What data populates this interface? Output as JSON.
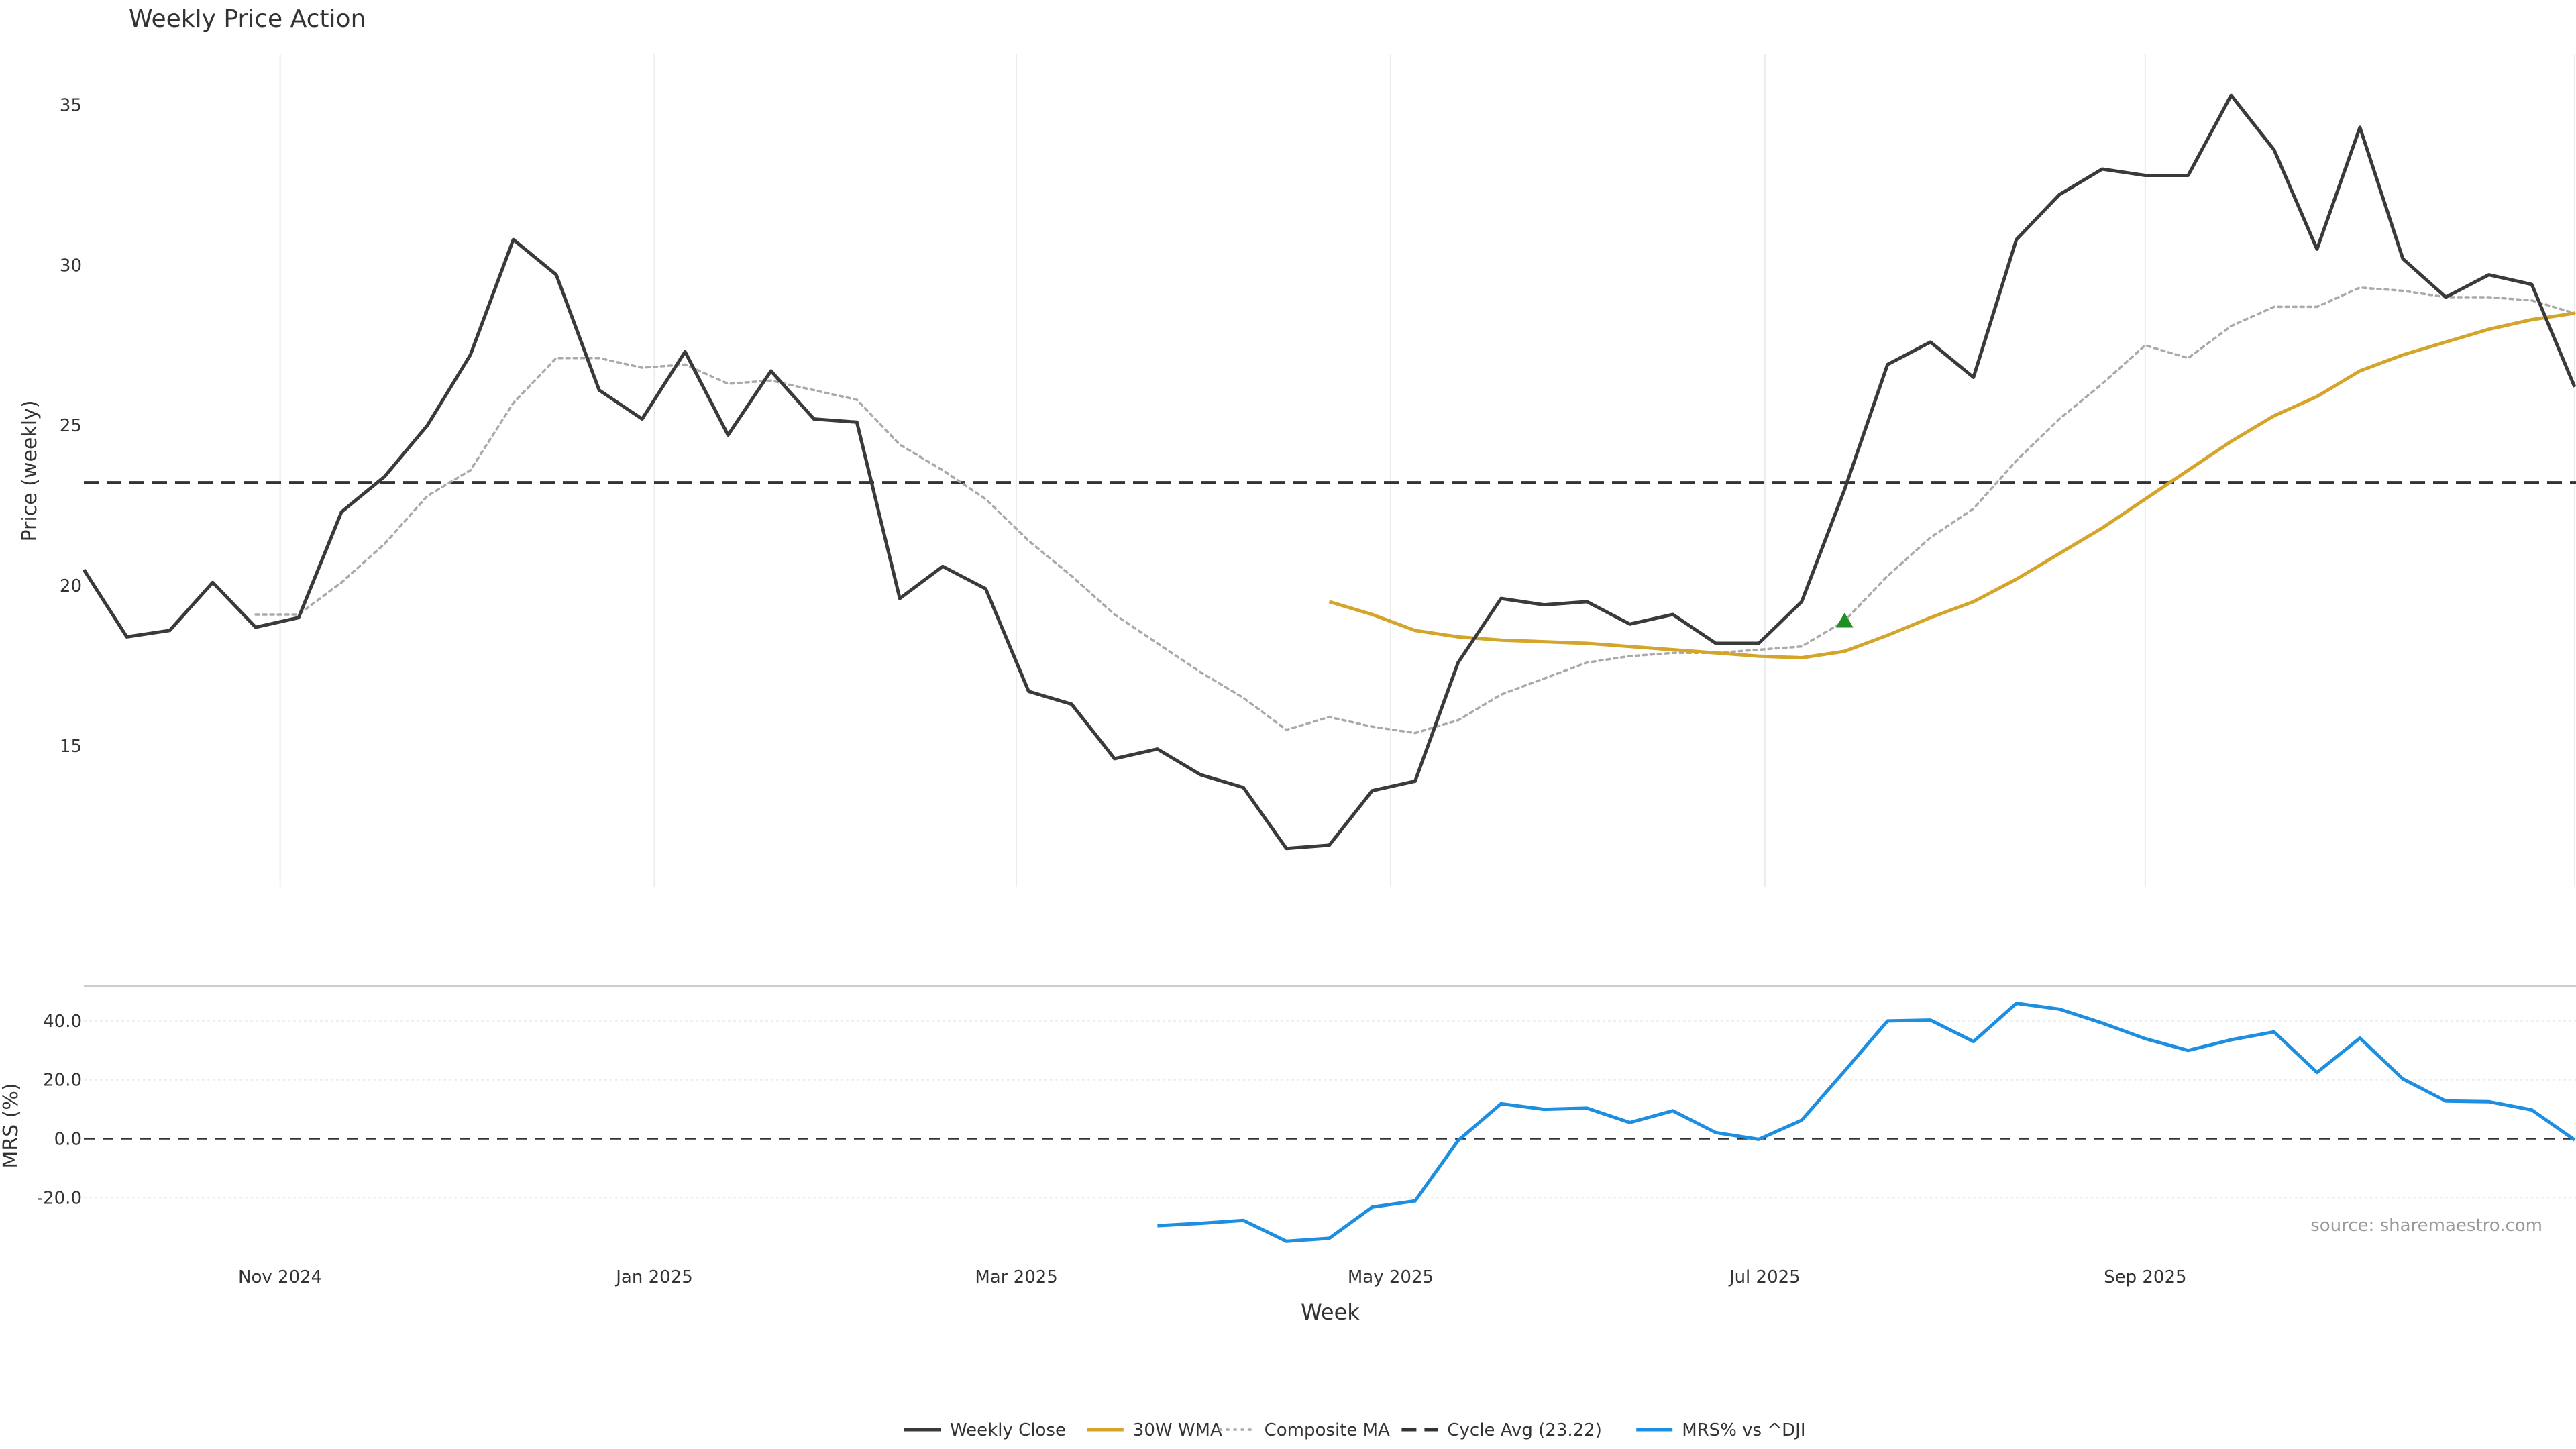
{
  "chart_data": {
    "type": "line",
    "title": "Weekly Price Action",
    "x_start": "2024-09-30",
    "x_step_days": 7,
    "x_tick_labels": [
      {
        "label": "Nov 2024",
        "date": "2024-11-01"
      },
      {
        "label": "Jan 2025",
        "date": "2025-01-01"
      },
      {
        "label": "Mar 2025",
        "date": "2025-03-01"
      },
      {
        "label": "May 2025",
        "date": "2025-05-01"
      },
      {
        "label": "Jul 2025",
        "date": "2025-07-01"
      },
      {
        "label": "Sep 2025",
        "date": "2025-09-01"
      }
    ],
    "xlabel": "Week",
    "price_panel": {
      "ylabel": "Price (weekly)",
      "ylim": [
        10.6,
        36.6
      ],
      "yticks": [
        15,
        20,
        25,
        30,
        35
      ],
      "series": [
        {
          "name": "Weekly Close",
          "color": "#3a3a3a",
          "style": "solid",
          "values": [
            20.5,
            18.4,
            18.6,
            20.1,
            18.7,
            19.0,
            22.3,
            23.4,
            25.0,
            27.2,
            30.8,
            29.7,
            26.1,
            25.2,
            27.3,
            24.7,
            26.7,
            25.2,
            25.1,
            19.6,
            20.6,
            19.9,
            16.7,
            16.3,
            14.6,
            14.9,
            14.1,
            13.7,
            11.8,
            11.9,
            13.6,
            13.9,
            17.6,
            19.6,
            19.4,
            19.5,
            18.8,
            19.1,
            18.2,
            18.2,
            19.5,
            23.0,
            26.9,
            27.6,
            26.5,
            30.8,
            32.2,
            33.0,
            32.8,
            32.8,
            35.3,
            33.6,
            30.5,
            34.3,
            30.2,
            29.0,
            29.7,
            29.4,
            26.2
          ]
        },
        {
          "name": "30W WMA",
          "color": "#d4a52a",
          "style": "solid",
          "start_index": 29,
          "values": [
            19.5,
            19.1,
            18.6,
            18.4,
            18.3,
            18.25,
            18.2,
            18.1,
            18.0,
            17.9,
            17.8,
            17.75,
            17.95,
            18.45,
            19.0,
            19.5,
            20.2,
            21.0,
            21.8,
            22.7,
            23.6,
            24.5,
            25.3,
            25.9,
            26.7,
            27.2,
            27.6,
            28.0,
            28.3,
            28.5
          ]
        },
        {
          "name": "Composite MA",
          "color": "#aaaaaa",
          "style": "dotted",
          "start_index": 4,
          "values": [
            19.1,
            19.1,
            20.1,
            21.3,
            22.8,
            23.6,
            25.7,
            27.1,
            27.1,
            26.8,
            26.9,
            26.3,
            26.4,
            26.1,
            25.8,
            24.4,
            23.6,
            22.7,
            21.4,
            20.3,
            19.1,
            18.2,
            17.3,
            16.5,
            15.5,
            15.9,
            15.6,
            15.4,
            15.8,
            16.6,
            17.1,
            17.6,
            17.8,
            17.9,
            17.9,
            18.0,
            18.1,
            18.9,
            20.3,
            21.5,
            22.4,
            23.9,
            25.2,
            26.3,
            27.5,
            27.1,
            28.1,
            28.7,
            28.7,
            29.3,
            29.2,
            29.0,
            29.0,
            28.9,
            28.5
          ]
        }
      ],
      "reference_line": {
        "name": "Cycle Avg (23.22)",
        "value": 23.22,
        "color": "#333333",
        "style": "dashed"
      },
      "marker": {
        "shape": "triangle-up",
        "index": 41,
        "value": 18.9,
        "color": "#1f8f1f"
      }
    },
    "mrs_panel": {
      "ylabel": "MRS (%)",
      "ylim": [
        -37,
        50
      ],
      "yticks": [
        40.0,
        20.0,
        0.0,
        -20.0
      ],
      "zero_line": {
        "value": 0,
        "color": "#333333",
        "style": "dashed"
      },
      "series": [
        {
          "name": "MRS% vs ^DJI",
          "color": "#1e8fe0",
          "style": "solid",
          "start_index": 25,
          "values": [
            -29.5,
            -28.7,
            -27.7,
            -34.8,
            -33.8,
            -23.2,
            -21.1,
            -0.6,
            11.9,
            10.0,
            10.4,
            5.5,
            9.5,
            2.1,
            -0.2,
            6.3,
            23.0,
            40.0,
            40.3,
            33.0,
            46.0,
            44.0,
            39.3,
            34.0,
            30.0,
            33.6,
            36.3,
            22.5,
            34.2,
            20.3,
            12.8,
            12.6,
            9.8,
            -0.4
          ]
        }
      ]
    },
    "grid": true,
    "legend": {
      "placement": "bottom-center",
      "entries": [
        {
          "label": "Weekly Close",
          "color": "#3a3a3a",
          "style": "solid"
        },
        {
          "label": "30W WMA",
          "color": "#d4a52a",
          "style": "solid"
        },
        {
          "label": "Composite MA",
          "color": "#aaaaaa",
          "style": "dotted"
        },
        {
          "label": "Cycle Avg (23.22)",
          "color": "#333333",
          "style": "dashed"
        },
        {
          "label": "MRS% vs ^DJI",
          "color": "#1e8fe0",
          "style": "solid"
        }
      ]
    },
    "source": "source: sharemaestro.com"
  }
}
